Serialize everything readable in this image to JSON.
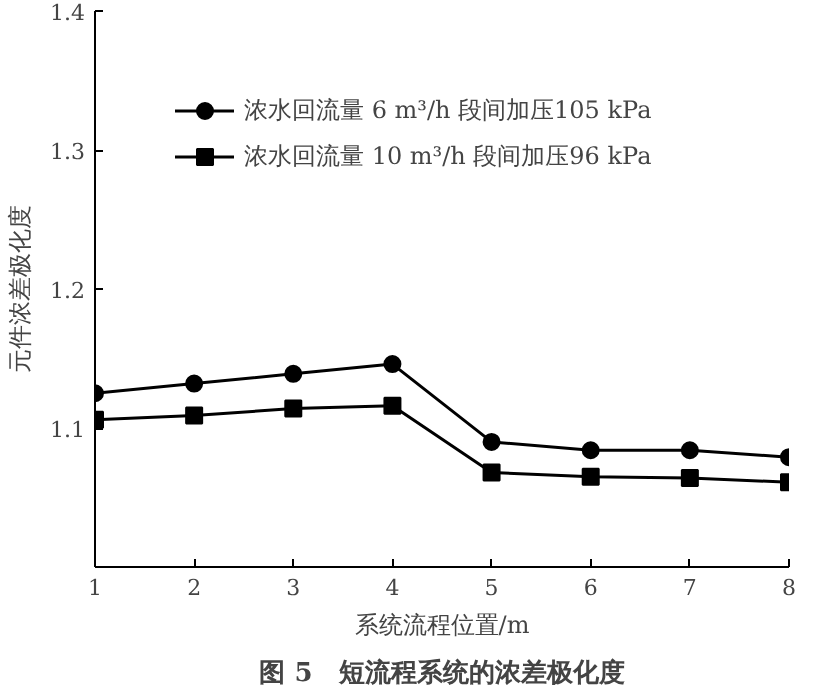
{
  "chart_data": {
    "type": "line",
    "xlabel": "系统流程位置/m",
    "ylabel": "元件浓差极化度",
    "annotations": [
      "图 5　短流程系统的浓差极化度"
    ],
    "x": [
      1,
      2,
      3,
      4,
      5,
      6,
      7,
      8
    ],
    "series": [
      {
        "name": "浓水回流量 6 m³/h 段间加压105 kPa",
        "color": "#000000",
        "marker": "circle",
        "values": [
          1.125,
          1.132,
          1.139,
          1.146,
          1.09,
          1.084,
          1.084,
          1.079
        ]
      },
      {
        "name": "浓水回流量 10 m³/h 段间加压96 kPa",
        "color": "#000000",
        "marker": "square",
        "values": [
          1.106,
          1.109,
          1.114,
          1.116,
          1.068,
          1.065,
          1.064,
          1.061
        ]
      }
    ],
    "xlim": [
      1,
      8
    ],
    "ylim": [
      1.0,
      1.4
    ],
    "xticks": [
      1,
      2,
      3,
      4,
      5,
      6,
      7,
      8
    ],
    "yticks": [
      1.1,
      1.2,
      1.3,
      1.4
    ],
    "grid": false,
    "legend": "top left",
    "line_style": "solid"
  }
}
